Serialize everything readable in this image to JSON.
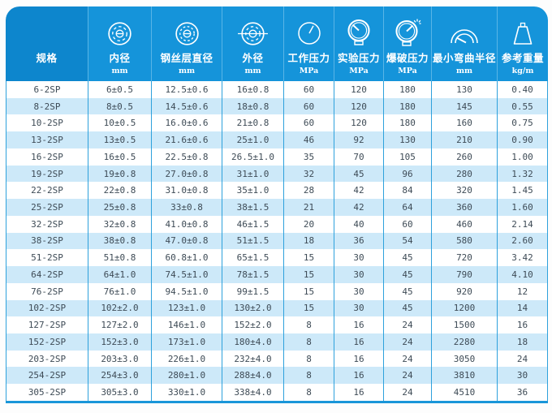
{
  "chart_data": {
    "type": "table",
    "columns": [
      {
        "label": "规格",
        "unit": ""
      },
      {
        "label": "内径",
        "unit": "mm"
      },
      {
        "label": "钢丝层直径",
        "unit": "mm"
      },
      {
        "label": "外径",
        "unit": "mm"
      },
      {
        "label": "工作压力",
        "unit": "MPa"
      },
      {
        "label": "实验压力",
        "unit": "MPa"
      },
      {
        "label": "爆破压力",
        "unit": "MPa"
      },
      {
        "label": "最小弯曲半径",
        "unit": "mm"
      },
      {
        "label": "参考重量",
        "unit": "kg/m"
      }
    ],
    "rows": [
      [
        "6-2SP",
        "6±0.5",
        "12.5±0.6",
        "16±0.8",
        "60",
        "120",
        "180",
        "130",
        "0.40"
      ],
      [
        "8-2SP",
        "8±0.5",
        "14.5±0.6",
        "18±0.8",
        "60",
        "120",
        "180",
        "145",
        "0.55"
      ],
      [
        "10-2SP",
        "10±0.5",
        "16.0±0.6",
        "21±0.8",
        "60",
        "120",
        "180",
        "160",
        "0.75"
      ],
      [
        "13-2SP",
        "13±0.5",
        "21.6±0.6",
        "25±1.0",
        "46",
        "92",
        "130",
        "210",
        "0.90"
      ],
      [
        "16-2SP",
        "16±0.5",
        "22.5±0.8",
        "26.5±1.0",
        "35",
        "70",
        "105",
        "260",
        "1.00"
      ],
      [
        "19-2SP",
        "19±0.8",
        "27.0±0.8",
        "31±1.0",
        "32",
        "45",
        "96",
        "280",
        "1.32"
      ],
      [
        "22-2SP",
        "22±0.8",
        "31.0±0.8",
        "35±1.0",
        "28",
        "42",
        "84",
        "320",
        "1.45"
      ],
      [
        "25-2SP",
        "25±0.8",
        "33±0.8",
        "38±1.5",
        "21",
        "42",
        "64",
        "360",
        "1.60"
      ],
      [
        "32-2SP",
        "32±0.8",
        "41.0±0.8",
        "46±1.5",
        "20",
        "40",
        "60",
        "460",
        "2.14"
      ],
      [
        "38-2SP",
        "38±0.8",
        "47.0±0.8",
        "51±1.5",
        "18",
        "36",
        "54",
        "580",
        "2.60"
      ],
      [
        "51-2SP",
        "51±0.8",
        "60.8±1.0",
        "65±1.5",
        "15",
        "30",
        "45",
        "720",
        "3.42"
      ],
      [
        "64-2SP",
        "64±1.0",
        "74.5±1.0",
        "78±1.5",
        "15",
        "30",
        "45",
        "790",
        "4.10"
      ],
      [
        "76-2SP",
        "76±1.0",
        "94.5±1.0",
        "99±1.5",
        "15",
        "30",
        "45",
        "920",
        "12"
      ],
      [
        "102-2SP",
        "102±2.0",
        "123±1.0",
        "130±2.0",
        "15",
        "30",
        "45",
        "1200",
        "14"
      ],
      [
        "127-2SP",
        "127±2.0",
        "146±1.0",
        "152±2.0",
        "8",
        "16",
        "24",
        "1500",
        "16"
      ],
      [
        "152-2SP",
        "152±3.0",
        "173±1.0",
        "180±4.0",
        "8",
        "16",
        "24",
        "2280",
        "18"
      ],
      [
        "203-2SP",
        "203±3.0",
        "226±1.0",
        "232±4.0",
        "8",
        "16",
        "24",
        "3050",
        "24"
      ],
      [
        "254-2SP",
        "254±3.0",
        "280±1.0",
        "288±4.0",
        "8",
        "16",
        "24",
        "3810",
        "30"
      ],
      [
        "305-2SP",
        "305±3.0",
        "330±1.0",
        "338±4.0",
        "8",
        "16",
        "24",
        "4510",
        "36"
      ]
    ]
  },
  "colors": {
    "header_blue": "#1594da",
    "header_first_column_blue": "#0d86cd",
    "alt_row_blue": "#cde9f9",
    "grid_line_blue": "#2ea1dc",
    "bottom_border_blue": "#1a96d9",
    "body_text": "#3e4b56",
    "header_text": "#ffffff"
  }
}
